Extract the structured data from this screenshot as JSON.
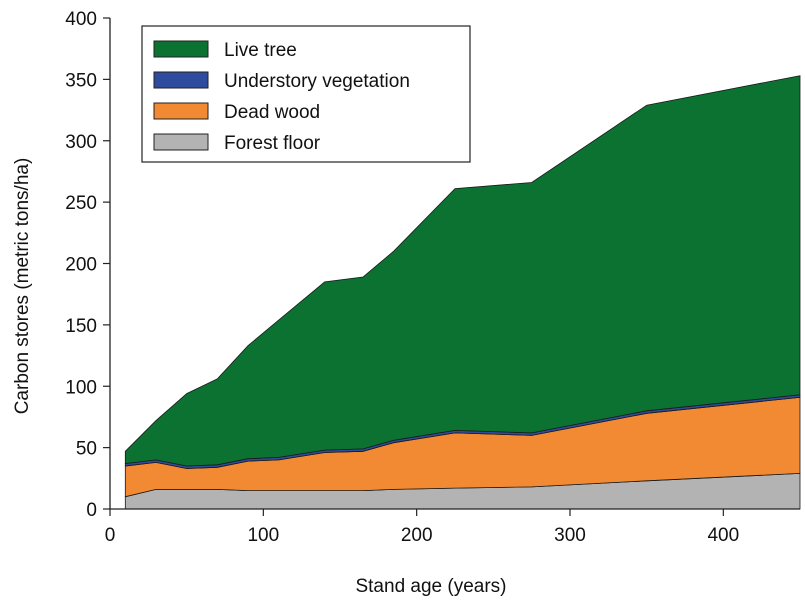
{
  "chart_data": {
    "type": "area",
    "stacked": true,
    "xlabel": "Stand age (years)",
    "ylabel": "Carbon stores (metric tons/ha)",
    "xlim": [
      0,
      450
    ],
    "ylim": [
      0,
      400
    ],
    "xticks": [
      0,
      100,
      200,
      300,
      400
    ],
    "yticks": [
      0,
      50,
      100,
      150,
      200,
      250,
      300,
      350,
      400
    ],
    "grid": false,
    "legend_position": "top-left",
    "x": [
      10,
      30,
      50,
      70,
      90,
      110,
      140,
      165,
      185,
      225,
      275,
      350,
      450
    ],
    "series": [
      {
        "name": "Forest floor",
        "color": "#b3b3b3",
        "values": [
          10,
          16,
          16,
          16,
          15,
          15,
          15,
          15,
          16,
          17,
          18,
          23,
          29
        ]
      },
      {
        "name": "Dead wood",
        "color": "#f28a33",
        "values": [
          25,
          22,
          17,
          18,
          24,
          25,
          31,
          32,
          38,
          45,
          42,
          55,
          62
        ]
      },
      {
        "name": "Understory vegetation",
        "color": "#2f4b9e",
        "values": [
          2,
          2,
          2,
          2,
          2,
          2,
          2,
          2,
          2,
          2,
          2,
          2,
          2
        ]
      },
      {
        "name": "Live tree",
        "color": "#0b7232",
        "values": [
          10,
          32,
          59,
          70,
          92,
          112,
          137,
          140,
          154,
          197,
          204,
          249,
          260
        ]
      }
    ],
    "legend_order": [
      "Live tree",
      "Understory vegetation",
      "Dead wood",
      "Forest floor"
    ]
  }
}
